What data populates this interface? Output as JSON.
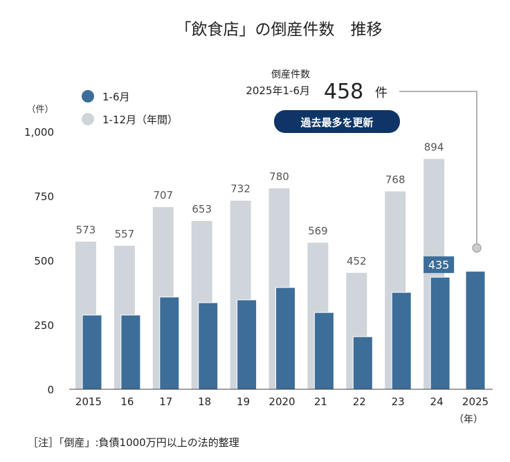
{
  "chart_data": {
    "type": "bar",
    "title": "「飲食店」の倒産件数　推移",
    "ylabel": "（件）",
    "xlabel_unit": "（年）",
    "ylim": [
      0,
      1000
    ],
    "yticks": [
      0,
      250,
      500,
      750,
      1000
    ],
    "ytick_labels": [
      "0",
      "250",
      "500",
      "750",
      "1,000"
    ],
    "categories": [
      "2015",
      "16",
      "17",
      "18",
      "19",
      "2020",
      "21",
      "22",
      "23",
      "24",
      "2025"
    ],
    "series": [
      {
        "name": "1-12月（年間）",
        "color": "#cfd5da",
        "values": [
          573,
          557,
          707,
          653,
          732,
          780,
          569,
          452,
          768,
          894,
          null
        ],
        "labels": [
          "573",
          "557",
          "707",
          "653",
          "732",
          "780",
          "569",
          "452",
          "768",
          "894",
          ""
        ]
      },
      {
        "name": "1-6月",
        "color": "#3d6d99",
        "values": [
          288,
          288,
          358,
          336,
          347,
          395,
          298,
          204,
          376,
          435,
          458
        ]
      }
    ],
    "legend": "top-left",
    "annotation": {
      "label_line1": "倒産件数",
      "label_line2": "2025年1-6月",
      "value": "458",
      "unit": "件",
      "badge": "過去最多を更新",
      "highlight_label": "435"
    },
    "note": "［注］「倒産」:負債1000万円以上の法的整理"
  }
}
